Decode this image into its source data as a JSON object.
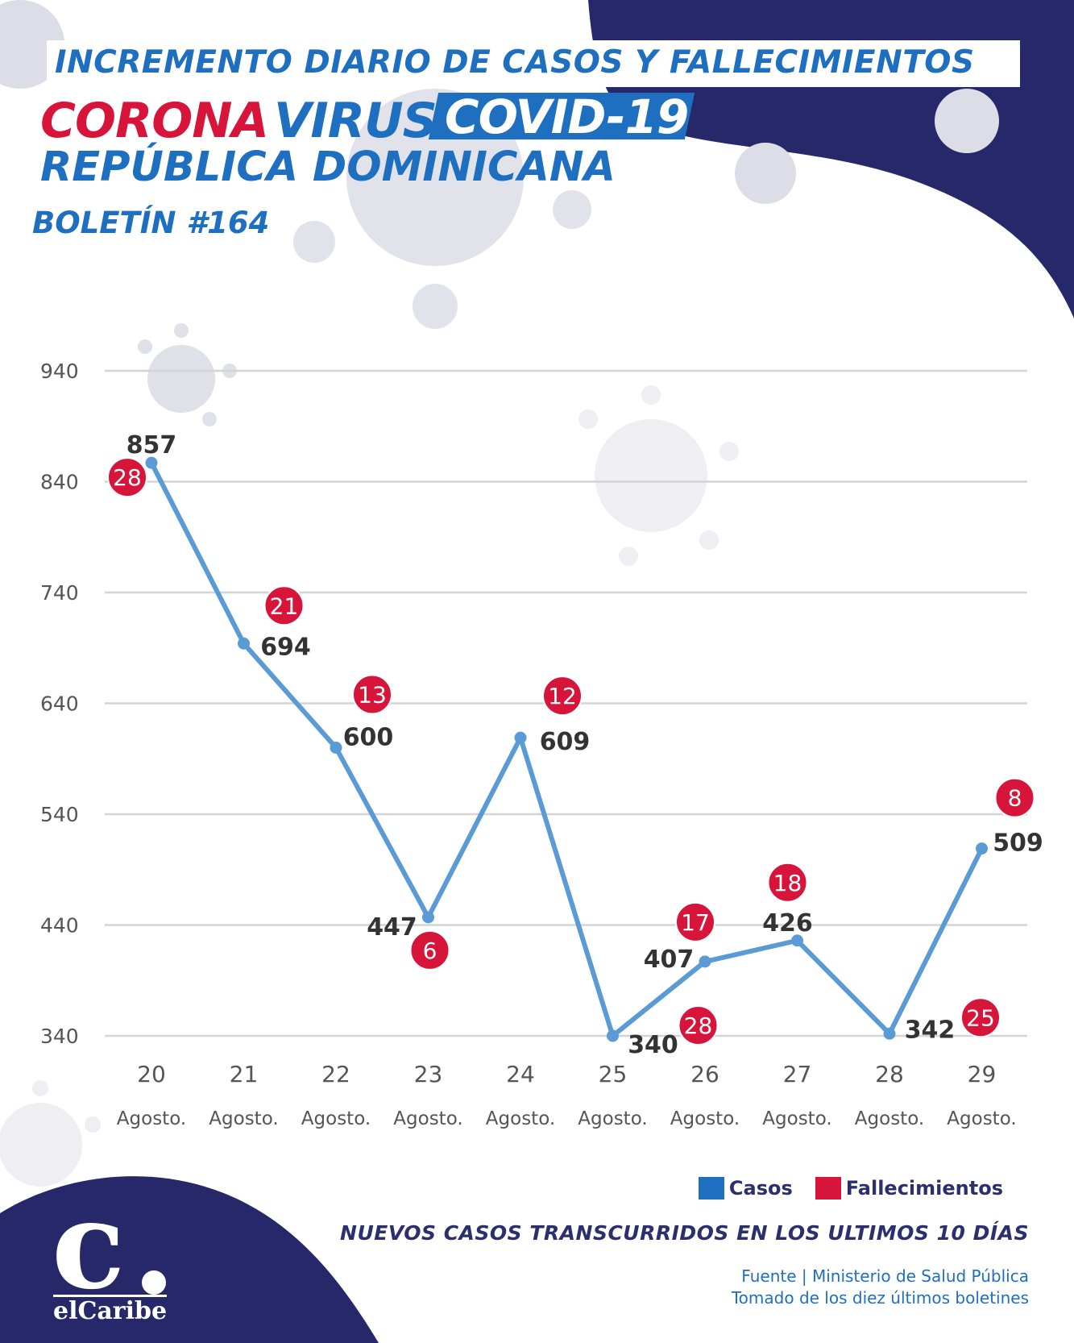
{
  "header": {
    "title": "INCREMENTO DIARIO DE CASOS Y FALLECIMIENTOS",
    "corona": "CORONA",
    "virus": "VIRUS",
    "covid": "COVID-19",
    "country": "REPÚBLICA DOMINICANA",
    "bulletin": "BOLETÍN #164"
  },
  "legend": {
    "cases_label": "Casos",
    "deaths_label": "Fallecimientos"
  },
  "colors": {
    "brand_blue": "#1e6fc0",
    "navy": "#2b2f6e",
    "deaths_red": "#d7153a",
    "line_blue": "#5b9bd5"
  },
  "footer": {
    "note": "NUEVOS CASOS TRANSCURRIDOS EN LOS ULTIMOS 10 DÍAS",
    "source_line1": "Fuente | Ministerio de Salud Pública",
    "source_line2": "Tomado de  los diez últimos boletines"
  },
  "logo": {
    "text": "elCaribe"
  },
  "chart_data": {
    "type": "line",
    "categories": [
      "20",
      "21",
      "22",
      "23",
      "24",
      "25",
      "26",
      "27",
      "28",
      "29"
    ],
    "category_sublabel": "Agosto.",
    "yticks": [
      340,
      440,
      540,
      640,
      740,
      840,
      940
    ],
    "ylim": [
      340,
      940
    ],
    "grid": true,
    "legend_position": "bottom-right",
    "series": [
      {
        "name": "Casos",
        "values": [
          857,
          694,
          600,
          447,
          609,
          340,
          407,
          426,
          342,
          509
        ]
      },
      {
        "name": "Fallecimientos",
        "values": [
          28,
          21,
          13,
          6,
          12,
          28,
          17,
          18,
          25,
          8
        ]
      }
    ]
  }
}
